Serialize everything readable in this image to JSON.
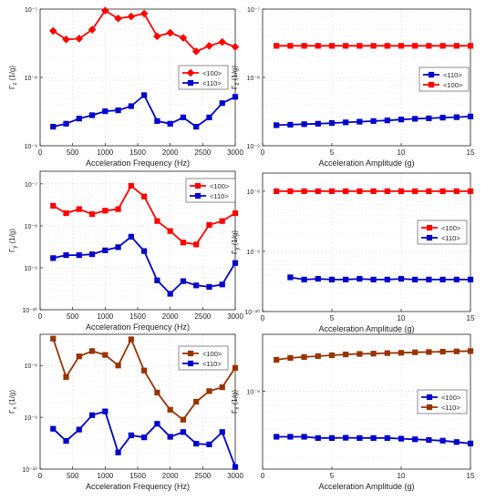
{
  "chart_data": [
    {
      "type": "line",
      "panel": "top-left",
      "yscale": "log",
      "xlabel": "Acceleration Frequency (Hz)",
      "ylabel": "Γz (1/g)",
      "ylabel_main": "Γ",
      "ylabel_sub": "z",
      "ylabel_unit": " (1/g)",
      "xlim": [
        0,
        3000
      ],
      "ylim": [
        1e-09,
        1e-07
      ],
      "xticks": [
        0,
        500,
        1000,
        1500,
        2000,
        2500,
        3000
      ],
      "yticks": [
        1e-09,
        1e-08,
        1e-07
      ],
      "ytick_labels": [
        "10⁻⁹",
        "10⁻⁸",
        "10⁻⁷"
      ],
      "grid": true,
      "legend_position": "center-right",
      "series": [
        {
          "name": "<100>",
          "color": "#ff0000",
          "marker": "diamond",
          "x": [
            200,
            400,
            600,
            800,
            1000,
            1200,
            1400,
            1600,
            1800,
            2000,
            2200,
            2400,
            2600,
            2800,
            3000
          ],
          "y": [
            4.8e-08,
            3.6e-08,
            3.7e-08,
            5e-08,
            9.5e-08,
            7.3e-08,
            7.8e-08,
            8.6e-08,
            4e-08,
            4.5e-08,
            3.8e-08,
            2.4e-08,
            2.9e-08,
            3.3e-08,
            2.8e-08
          ]
        },
        {
          "name": "<110>",
          "color": "#0000cc",
          "marker": "square",
          "x": [
            200,
            400,
            600,
            800,
            1000,
            1200,
            1400,
            1600,
            1800,
            2000,
            2200,
            2400,
            2600,
            2800,
            3000
          ],
          "y": [
            1.9e-09,
            2.1e-09,
            2.5e-09,
            2.8e-09,
            3.2e-09,
            3.3e-09,
            3.8e-09,
            5.5e-09,
            2.3e-09,
            2.1e-09,
            2.6e-09,
            1.9e-09,
            2.6e-09,
            4.2e-09,
            5.2e-09
          ]
        }
      ]
    },
    {
      "type": "line",
      "panel": "top-right",
      "yscale": "log",
      "xlabel": "Acceleration Amplitude (g)",
      "ylabel": "Γz (1/g)",
      "ylabel_main": "Γ",
      "ylabel_sub": "z",
      "ylabel_unit": " (1/g)",
      "xlim": [
        0,
        15
      ],
      "ylim": [
        1e-09,
        1e-07
      ],
      "xticks": [
        0,
        5,
        10,
        15
      ],
      "yticks": [
        1e-09,
        1e-08,
        1e-07
      ],
      "ytick_labels": [
        "10⁻⁹",
        "10⁻⁸",
        "10⁻⁷"
      ],
      "grid": true,
      "legend_position": "center-right",
      "series": [
        {
          "name": "<110>",
          "color": "#0000cc",
          "marker": "square",
          "x": [
            1,
            2,
            3,
            4,
            5,
            6,
            7,
            8,
            9,
            10,
            11,
            12,
            13,
            14,
            15
          ],
          "y": [
            2e-09,
            2.03e-09,
            2.07e-09,
            2.1e-09,
            2.15e-09,
            2.2e-09,
            2.25e-09,
            2.3e-09,
            2.35e-09,
            2.42e-09,
            2.48e-09,
            2.52e-09,
            2.58e-09,
            2.62e-09,
            2.68e-09
          ]
        },
        {
          "name": "<100>",
          "color": "#ff0000",
          "marker": "square",
          "x": [
            1,
            2,
            3,
            4,
            5,
            6,
            7,
            8,
            9,
            10,
            11,
            12,
            13,
            14,
            15
          ],
          "y": [
            2.9e-08,
            2.9e-08,
            2.9e-08,
            2.9e-08,
            2.9e-08,
            2.9e-08,
            2.9e-08,
            2.9e-08,
            2.9e-08,
            2.9e-08,
            2.9e-08,
            2.9e-08,
            2.9e-08,
            2.9e-08,
            2.9e-08
          ]
        }
      ]
    },
    {
      "type": "line",
      "panel": "middle-left",
      "yscale": "log",
      "xlabel": "Acceleration Frequency (Hz)",
      "ylabel": "Γy (1/g)",
      "ylabel_main": "Γ",
      "ylabel_sub": "y",
      "ylabel_unit": " (1/g)",
      "xlim": [
        0,
        3000
      ],
      "ylim": [
        1e-10,
        2e-07
      ],
      "xticks": [
        0,
        500,
        1000,
        1500,
        2000,
        2500,
        3000
      ],
      "yticks": [
        1e-10,
        1e-09,
        1e-08,
        1e-07
      ],
      "ytick_labels": [
        "10⁻¹⁰",
        "10⁻⁹",
        "10⁻⁸",
        "10⁻⁷"
      ],
      "grid": true,
      "legend_position": "top-right",
      "series": [
        {
          "name": "<100>",
          "color": "#ff0000",
          "marker": "square",
          "x": [
            200,
            400,
            600,
            800,
            1000,
            1200,
            1400,
            1600,
            1800,
            2000,
            2200,
            2400,
            2600,
            2800,
            3000
          ],
          "y": [
            3e-08,
            2e-08,
            2.5e-08,
            1.9e-08,
            2.3e-08,
            2.5e-08,
            9e-08,
            5e-08,
            1.3e-08,
            7.5e-09,
            4e-09,
            3.6e-09,
            1.05e-08,
            1.3e-08,
            2e-08
          ]
        },
        {
          "name": "<110>",
          "color": "#0000cc",
          "marker": "square",
          "x": [
            200,
            400,
            600,
            800,
            1000,
            1200,
            1400,
            1600,
            1800,
            2000,
            2200,
            2400,
            2600,
            2800,
            3000
          ],
          "y": [
            1.7e-09,
            2e-09,
            2e-09,
            2.1e-09,
            2.6e-09,
            3.1e-09,
            5.5e-09,
            2.5e-09,
            5e-10,
            2.4e-10,
            4.8e-10,
            3.8e-10,
            3.5e-10,
            4e-10,
            1.3e-09
          ]
        }
      ]
    },
    {
      "type": "line",
      "panel": "middle-right",
      "yscale": "log",
      "xlabel": "Acceleration Amplitude (g)",
      "ylabel": "Γy (1/g)",
      "ylabel_main": "Γ",
      "ylabel_sub": "y",
      "ylabel_unit": " (1/g)",
      "xlim": [
        0,
        15
      ],
      "ylim": [
        1e-10,
        2e-08
      ],
      "xticks": [
        0,
        5,
        10,
        15
      ],
      "yticks": [
        1e-10,
        1e-09,
        1e-08
      ],
      "ytick_labels": [
        "10⁻¹⁰",
        "10⁻⁹",
        "10⁻⁸"
      ],
      "grid": true,
      "legend_position": "center-right",
      "series": [
        {
          "name": "<100>",
          "color": "#ff0000",
          "marker": "square",
          "x": [
            1,
            2,
            3,
            4,
            5,
            6,
            7,
            8,
            9,
            10,
            11,
            12,
            13,
            14,
            15
          ],
          "y": [
            1e-08,
            1e-08,
            1e-08,
            1e-08,
            1e-08,
            1e-08,
            1e-08,
            1e-08,
            1e-08,
            1e-08,
            1e-08,
            1e-08,
            1e-08,
            1e-08,
            1e-08
          ]
        },
        {
          "name": "<110>",
          "color": "#0000cc",
          "marker": "square",
          "x": [
            2,
            3,
            4,
            5,
            6,
            7,
            8,
            9,
            10,
            11,
            12,
            13,
            14,
            15
          ],
          "y": [
            3.7e-10,
            3.4e-10,
            3.5e-10,
            3.4e-10,
            3.4e-10,
            3.5e-10,
            3.4e-10,
            3.4e-10,
            3.5e-10,
            3.4e-10,
            3.4e-10,
            3.4e-10,
            3.4e-10,
            3.4e-10
          ]
        }
      ]
    },
    {
      "type": "line",
      "panel": "bottom-left",
      "yscale": "log",
      "xlabel": "Acceleration Frequency (Hz)",
      "ylabel": "Γx (1/g)",
      "ylabel_main": "Γ",
      "ylabel_sub": "x",
      "ylabel_unit": " (1/g)",
      "xlim": [
        0,
        3000
      ],
      "ylim": [
        1e-10,
        4e-08
      ],
      "xticks": [
        0,
        500,
        1000,
        1500,
        2000,
        2500,
        3000
      ],
      "yticks": [
        1e-10,
        1e-09,
        1e-08
      ],
      "ytick_labels": [
        "10⁻¹⁰",
        "10⁻⁹",
        "10⁻⁸"
      ],
      "grid": true,
      "legend_position": "top-right",
      "series": [
        {
          "name": "<100>",
          "color": "#993300",
          "marker": "square",
          "x": [
            200,
            400,
            600,
            800,
            1000,
            1200,
            1400,
            1600,
            1800,
            2000,
            2200,
            2400,
            2600,
            2800,
            3000
          ],
          "y": [
            3.3e-08,
            6e-09,
            1.5e-08,
            1.9e-08,
            1.6e-08,
            1e-08,
            3.2e-08,
            8e-09,
            3e-09,
            1.4e-09,
            9e-10,
            2e-09,
            3.2e-09,
            3.8e-09,
            9e-09
          ]
        },
        {
          "name": "<110>",
          "color": "#0000cc",
          "marker": "square",
          "x": [
            200,
            400,
            600,
            800,
            1000,
            1200,
            1400,
            1600,
            1800,
            2000,
            2200,
            2400,
            2600,
            2800,
            3000
          ],
          "y": [
            6e-10,
            3.5e-10,
            5.8e-10,
            1.1e-09,
            1.3e-09,
            2.1e-10,
            4.5e-10,
            4.1e-10,
            7.5e-10,
            4.2e-10,
            5.2e-10,
            3.1e-10,
            3e-10,
            5.2e-10,
            1.1e-10
          ]
        }
      ]
    },
    {
      "type": "line",
      "panel": "bottom-right",
      "yscale": "log",
      "xlabel": "Acceleration Amplitude (g)",
      "ylabel": "Γx (1/g)",
      "ylabel_main": "Γ",
      "ylabel_sub": "x",
      "ylabel_unit": " (1/g)",
      "xlim": [
        0,
        15
      ],
      "ylim": [
        1.5e-10,
        4e-09
      ],
      "xticks": [
        0,
        5,
        10,
        15
      ],
      "yticks": [
        1e-09
      ],
      "ytick_labels": [
        "10⁻⁹"
      ],
      "grid": true,
      "legend_position": "center-right",
      "series": [
        {
          "name": "<100>",
          "color": "#0000cc",
          "marker": "square",
          "x": [
            1,
            2,
            3,
            4,
            5,
            6,
            7,
            8,
            9,
            10,
            11,
            12,
            13,
            14,
            15
          ],
          "y": [
            3.3e-10,
            3.3e-10,
            3.3e-10,
            3.2e-10,
            3.2e-10,
            3.22e-10,
            3.2e-10,
            3.2e-10,
            3.2e-10,
            3.15e-10,
            3.1e-10,
            3.05e-10,
            3e-10,
            2.9e-10,
            2.8e-10
          ]
        },
        {
          "name": "<110>",
          "color": "#993300",
          "marker": "square",
          "x": [
            1,
            2,
            3,
            4,
            5,
            6,
            7,
            8,
            9,
            10,
            11,
            12,
            13,
            14,
            15
          ],
          "y": [
            2.15e-09,
            2.25e-09,
            2.3e-09,
            2.35e-09,
            2.4e-09,
            2.45e-09,
            2.48e-09,
            2.5e-09,
            2.53e-09,
            2.55e-09,
            2.58e-09,
            2.6e-09,
            2.62e-09,
            2.64e-09,
            2.66e-09
          ]
        }
      ]
    }
  ]
}
